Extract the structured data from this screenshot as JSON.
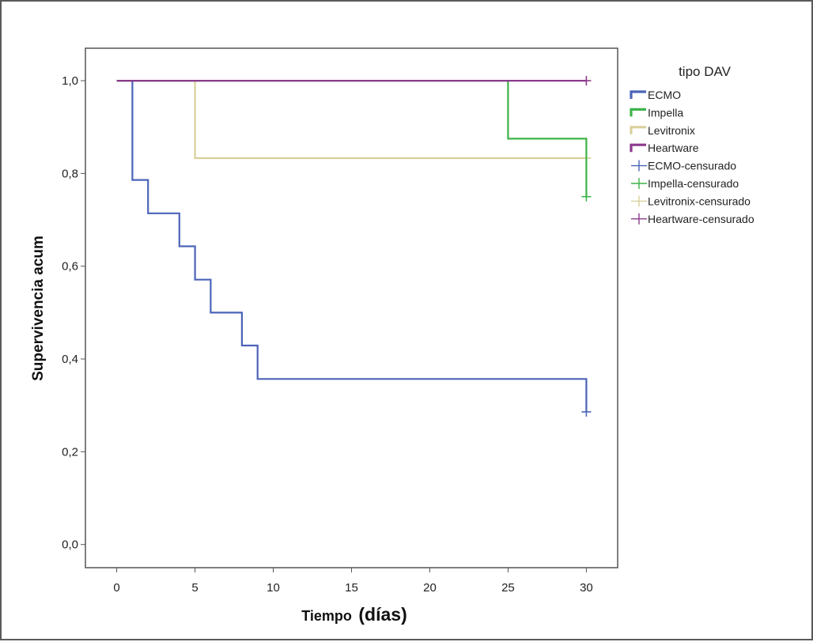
{
  "chart_data": {
    "type": "line",
    "step": true,
    "title": "",
    "xlabel": "Tiempo",
    "xlabel_suffix": "(días)",
    "ylabel": "Supervivencia acum",
    "xlim": [
      -2,
      32
    ],
    "ylim": [
      -0.05,
      1.07
    ],
    "xticks": [
      0,
      5,
      10,
      15,
      20,
      25,
      30
    ],
    "xtick_labels": [
      "0",
      "5",
      "10",
      "15",
      "20",
      "25",
      "30"
    ],
    "yticks": [
      0,
      0.2,
      0.4,
      0.6,
      0.8,
      1.0
    ],
    "ytick_labels": [
      "0,0",
      "0,2",
      "0,4",
      "0,6",
      "0,8",
      "1,0"
    ],
    "grid": false,
    "legend": {
      "title": "tipo DAV",
      "placement": "right",
      "entries": [
        {
          "label": "ECMO",
          "kind": "line",
          "color": "#4b64b8"
        },
        {
          "label": "Impella",
          "kind": "line",
          "color": "#3db34a"
        },
        {
          "label": "Levitronix",
          "kind": "line",
          "color": "#d8d09a"
        },
        {
          "label": "Heartware",
          "kind": "line",
          "color": "#8a3a8c"
        },
        {
          "label": "ECMO-censurado",
          "kind": "censor",
          "color": "#4b64b8"
        },
        {
          "label": "Impella-censurado",
          "kind": "censor",
          "color": "#3db34a"
        },
        {
          "label": "Levitronix-censurado",
          "kind": "censor",
          "color": "#d8d09a"
        },
        {
          "label": "Heartware-censurado",
          "kind": "censor",
          "color": "#8a3a8c"
        }
      ]
    },
    "series": [
      {
        "name": "Levitronix",
        "color": "#d8d09a",
        "x": [
          0,
          5,
          5,
          30
        ],
        "y": [
          1.0,
          1.0,
          0.833,
          0.833
        ],
        "censored": [
          {
            "x": 30,
            "y": 0.833
          }
        ]
      },
      {
        "name": "Impella",
        "color": "#3db34a",
        "x": [
          0,
          25,
          25,
          30,
          30
        ],
        "y": [
          1.0,
          1.0,
          0.875,
          0.875,
          0.75
        ],
        "censored": [
          {
            "x": 30,
            "y": 0.75
          }
        ]
      },
      {
        "name": "ECMO",
        "color": "#4b64b8",
        "x": [
          1,
          1,
          2,
          2,
          4,
          4,
          5,
          5,
          6,
          6,
          8,
          8,
          9,
          9,
          30,
          30
        ],
        "y": [
          1.0,
          0.786,
          0.786,
          0.714,
          0.714,
          0.643,
          0.643,
          0.571,
          0.571,
          0.5,
          0.5,
          0.429,
          0.429,
          0.357,
          0.357,
          0.286
        ],
        "censored": [
          {
            "x": 30,
            "y": 0.286
          }
        ]
      },
      {
        "name": "Heartware",
        "color": "#8a3a8c",
        "x": [
          0,
          30
        ],
        "y": [
          1.0,
          1.0
        ],
        "censored": [
          {
            "x": 30,
            "y": 1.0
          }
        ]
      }
    ]
  }
}
